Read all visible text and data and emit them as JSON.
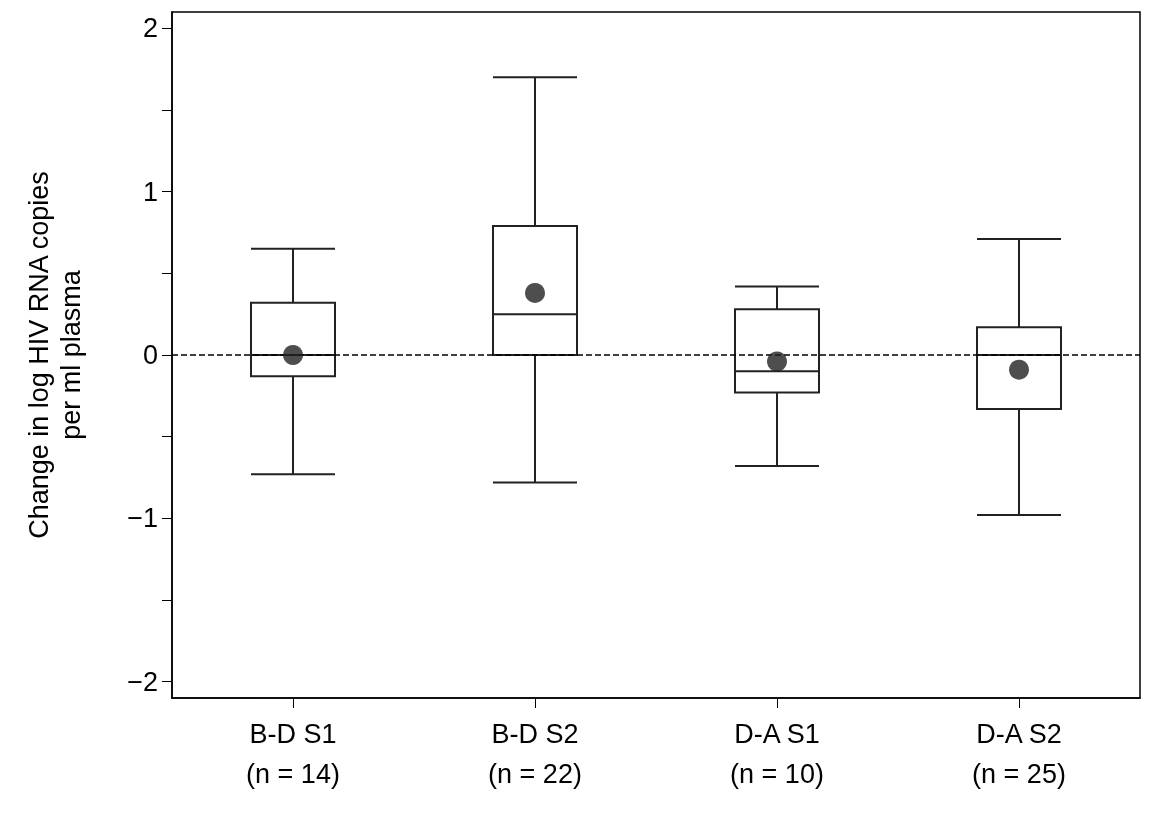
{
  "chart_data": {
    "type": "box",
    "ylabel": "Change in log HIV RNA copies\nper ml plasma",
    "categories": [
      "B-D S1\n(n = 14)",
      "B-D S2\n(n = 22)",
      "D-A S1\n(n = 10)",
      "D-A S2\n(n = 25)"
    ],
    "boxes": [
      {
        "low": -0.73,
        "q1": -0.13,
        "median": 0,
        "q3": 0.32,
        "high": 0.65,
        "mean": 0
      },
      {
        "low": -0.78,
        "q1": 0,
        "median": 0.25,
        "q3": 0.79,
        "high": 1.7,
        "mean": 0.38
      },
      {
        "low": -0.68,
        "q1": -0.23,
        "median": -0.1,
        "q3": 0.28,
        "high": 0.42,
        "mean": -0.04
      },
      {
        "low": -0.98,
        "q1": -0.33,
        "median": 0,
        "q3": 0.17,
        "high": 0.71,
        "mean": -0.09
      }
    ],
    "ylim": [
      -2.1,
      2.1
    ],
    "yticks": [
      {
        "value": -2,
        "label": "−2"
      },
      {
        "value": -1.5,
        "label": null
      },
      {
        "value": -1,
        "label": "−1"
      },
      {
        "value": -0.5,
        "label": null
      },
      0,
      {
        "value": 0.5,
        "label": null
      },
      1,
      {
        "value": 1.5,
        "label": null
      },
      2
    ],
    "ref_lines": [
      {
        "axis": "y",
        "value": 0,
        "line_style": "dashed",
        "color": "#000000"
      }
    ],
    "marker": "circle",
    "grid": false
  }
}
